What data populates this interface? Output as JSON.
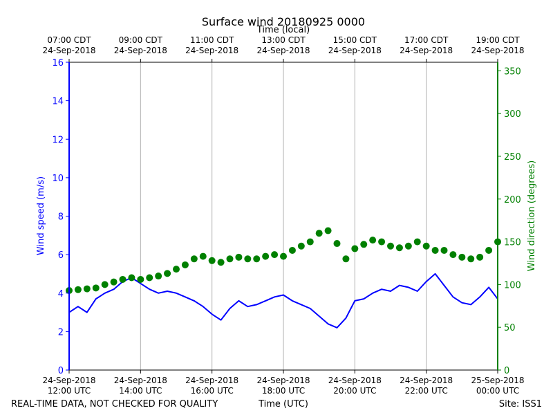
{
  "chart_data": {
    "type": "line",
    "title": "Surface wind 20180925 0000",
    "top_xlabel": "Time (local)",
    "xlabel": "Time (UTC)",
    "ylabel_left": "Wind speed (m/s)",
    "ylabel_right": "Wind direction (degrees)",
    "xlim_hours": [
      12,
      24
    ],
    "ylim_left": [
      0,
      16
    ],
    "ylim_right": [
      0,
      360
    ],
    "left_ticks": [
      0,
      2,
      4,
      6,
      8,
      10,
      12,
      14,
      16
    ],
    "right_ticks": [
      0,
      50,
      100,
      150,
      200,
      250,
      300,
      350
    ],
    "grid": "vertical",
    "bottom_ticks": [
      {
        "hour": 12,
        "line1": "24-Sep-2018",
        "line2": "12:00 UTC"
      },
      {
        "hour": 14,
        "line1": "24-Sep-2018",
        "line2": "14:00 UTC"
      },
      {
        "hour": 16,
        "line1": "24-Sep-2018",
        "line2": "16:00 UTC"
      },
      {
        "hour": 18,
        "line1": "24-Sep-2018",
        "line2": "18:00 UTC"
      },
      {
        "hour": 20,
        "line1": "24-Sep-2018",
        "line2": "20:00 UTC"
      },
      {
        "hour": 22,
        "line1": "24-Sep-2018",
        "line2": "22:00 UTC"
      },
      {
        "hour": 24,
        "line1": "25-Sep-2018",
        "line2": "00:00 UTC"
      }
    ],
    "top_ticks": [
      {
        "hour": 12,
        "line1": "07:00 CDT",
        "line2": "24-Sep-2018"
      },
      {
        "hour": 14,
        "line1": "09:00 CDT",
        "line2": "24-Sep-2018"
      },
      {
        "hour": 16,
        "line1": "11:00 CDT",
        "line2": "24-Sep-2018"
      },
      {
        "hour": 18,
        "line1": "13:00 CDT",
        "line2": "24-Sep-2018"
      },
      {
        "hour": 20,
        "line1": "15:00 CDT",
        "line2": "24-Sep-2018"
      },
      {
        "hour": 22,
        "line1": "17:00 CDT",
        "line2": "24-Sep-2018"
      },
      {
        "hour": 24,
        "line1": "19:00 CDT",
        "line2": "24-Sep-2018"
      }
    ],
    "series": [
      {
        "name": "Wind speed",
        "axis": "left",
        "style": "line",
        "color": "#0000ff",
        "hours": [
          12.0,
          12.25,
          12.5,
          12.75,
          13.0,
          13.25,
          13.5,
          13.75,
          14.0,
          14.25,
          14.5,
          14.75,
          15.0,
          15.25,
          15.5,
          15.75,
          16.0,
          16.25,
          16.5,
          16.75,
          17.0,
          17.25,
          17.5,
          17.75,
          18.0,
          18.25,
          18.5,
          18.75,
          19.0,
          19.25,
          19.5,
          19.75,
          20.0,
          20.25,
          20.5,
          20.75,
          21.0,
          21.25,
          21.5,
          21.75,
          22.0,
          22.25,
          22.5,
          22.75,
          23.0,
          23.25,
          23.5,
          23.75,
          24.0
        ],
        "values": [
          3.0,
          3.3,
          3.0,
          3.7,
          4.0,
          4.2,
          4.6,
          4.8,
          4.5,
          4.2,
          4.0,
          4.1,
          4.0,
          3.8,
          3.6,
          3.3,
          2.9,
          2.6,
          3.2,
          3.6,
          3.3,
          3.4,
          3.6,
          3.8,
          3.9,
          3.6,
          3.4,
          3.2,
          2.8,
          2.4,
          2.2,
          2.7,
          3.6,
          3.7,
          4.0,
          4.2,
          4.1,
          4.4,
          4.3,
          4.1,
          4.6,
          5.0,
          4.4,
          3.8,
          3.5,
          3.4,
          3.8,
          4.3,
          3.7
        ]
      },
      {
        "name": "Wind direction",
        "axis": "right",
        "style": "scatter",
        "color": "#008000",
        "hours": [
          12.0,
          12.25,
          12.5,
          12.75,
          13.0,
          13.25,
          13.5,
          13.75,
          14.0,
          14.25,
          14.5,
          14.75,
          15.0,
          15.25,
          15.5,
          15.75,
          16.0,
          16.25,
          16.5,
          16.75,
          17.0,
          17.25,
          17.5,
          17.75,
          18.0,
          18.25,
          18.5,
          18.75,
          19.0,
          19.25,
          19.5,
          19.75,
          20.0,
          20.25,
          20.5,
          20.75,
          21.0,
          21.25,
          21.5,
          21.75,
          22.0,
          22.25,
          22.5,
          22.75,
          23.0,
          23.25,
          23.5,
          23.75,
          24.0
        ],
        "values": [
          93,
          94,
          95,
          96,
          100,
          103,
          106,
          108,
          106,
          108,
          110,
          113,
          118,
          123,
          130,
          133,
          128,
          126,
          130,
          132,
          130,
          130,
          133,
          135,
          133,
          140,
          145,
          150,
          160,
          163,
          148,
          130,
          142,
          147,
          152,
          150,
          145,
          143,
          145,
          150,
          145,
          140,
          140,
          135,
          132,
          130,
          132,
          140,
          150
        ]
      }
    ]
  },
  "footer": {
    "left": "REAL-TIME DATA, NOT CHECKED FOR QUALITY",
    "center": "Time (UTC)",
    "right": "Site: ISS1"
  }
}
